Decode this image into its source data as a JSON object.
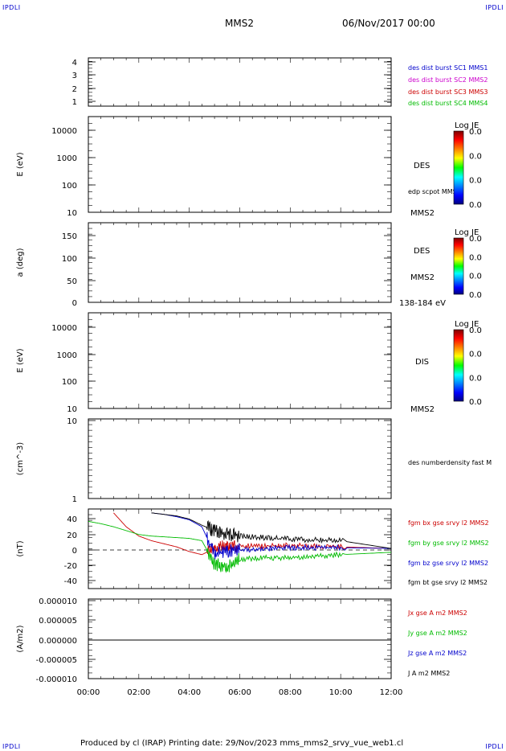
{
  "corners": {
    "tl": "IPDLI",
    "tr": "IPDLI",
    "bl": "IPDLI",
    "br": "IPDLI"
  },
  "header": {
    "title": "MMS2",
    "datetime": "06/Nov/2017 00:00"
  },
  "footer": {
    "text": "Produced by cl (IRAP)   Printing date: 29/Nov/2023   mms_mms2_srvy_vue_web1.cl"
  },
  "x_axis": {
    "ticks": [
      "00:00",
      "02:00",
      "04:00",
      "06:00",
      "08:00",
      "10:00",
      "12:00"
    ]
  },
  "panels": [
    {
      "id": "p1",
      "yticks": [
        "4",
        "3",
        "2",
        "1"
      ],
      "ylabel": "",
      "legend": [
        {
          "text": "des dist burst SC1 MMS1",
          "color": "#0000cc"
        },
        {
          "text": "des dist burst SC2 MMS2",
          "color": "#cc00cc"
        },
        {
          "text": "des dist burst SC3 MMS3",
          "color": "#cc0000"
        },
        {
          "text": "des dist burst SC4 MMS4",
          "color": "#00bb00"
        }
      ]
    },
    {
      "id": "p2",
      "yticks": [
        "10000",
        "1000",
        "100",
        "10"
      ],
      "ylabel": "E (eV)",
      "labels": [
        "DES",
        "edp scpot MMS2",
        "MMS2"
      ],
      "colorbar": {
        "title": "Log JE",
        "values": [
          "0.0",
          "0.0",
          "0.0",
          "0.0"
        ]
      }
    },
    {
      "id": "p3",
      "yticks": [
        "150",
        "100",
        "50",
        "0"
      ],
      "ylabel": "a (deg)",
      "labels": [
        "DES",
        "MMS2",
        "138-184 eV"
      ],
      "colorbar": {
        "title": "Log JE",
        "values": [
          "0.0",
          "0.0",
          "0.0",
          "0.0"
        ]
      }
    },
    {
      "id": "p4",
      "yticks": [
        "10000",
        "1000",
        "100",
        "10"
      ],
      "ylabel": "E (eV)",
      "labels": [
        "DIS",
        "MMS2"
      ],
      "colorbar": {
        "title": "Log JE",
        "values": [
          "0.0",
          "0.0",
          "0.0",
          "0.0"
        ]
      }
    },
    {
      "id": "p5",
      "yticks": [
        "10",
        "1"
      ],
      "ylabel": "(cm^-3)",
      "labels": [
        "des numberdensity fast M"
      ]
    },
    {
      "id": "p6",
      "yticks": [
        "40",
        "20",
        "0",
        "-20",
        "-40"
      ],
      "ylabel": "(nT)",
      "legend": [
        {
          "text": "fgm bx gse srvy l2 MMS2",
          "color": "#cc0000"
        },
        {
          "text": "fgm by gse srvy l2 MMS2",
          "color": "#00bb00"
        },
        {
          "text": "fgm bz gse srvy l2 MMS2",
          "color": "#0000cc"
        },
        {
          "text": "fgm bt gse srvy l2 MMS2",
          "color": "#000000"
        }
      ]
    },
    {
      "id": "p7",
      "yticks": [
        "0.000010",
        "0.000005",
        "0.000000",
        "-0.000005",
        "-0.000010"
      ],
      "ylabel": "(A/m2)",
      "legend": [
        {
          "text": "Jx gse A m2 MMS2",
          "color": "#cc0000"
        },
        {
          "text": "Jy gse A m2 MMS2",
          "color": "#00bb00"
        },
        {
          "text": "Jz gse A m2 MMS2",
          "color": "#0000cc"
        },
        {
          "text": "J A m2 MMS2",
          "color": "#000000"
        }
      ]
    }
  ],
  "chart_data": {
    "type": "line",
    "xlabel": "",
    "xlim": [
      "00:00",
      "12:00"
    ],
    "series": [
      {
        "name": "fgm bx gse srvy l2 MMS2",
        "color": "#cc0000",
        "x": [
          "01:00",
          "01:30",
          "02:00",
          "02:30",
          "03:00",
          "03:30",
          "04:00",
          "04:30",
          "05:00",
          "05:30",
          "06:00",
          "07:00",
          "08:00",
          "09:00",
          "10:00",
          "12:00"
        ],
        "values": [
          48,
          30,
          18,
          12,
          8,
          4,
          -2,
          -6,
          2,
          6,
          5,
          5,
          6,
          5,
          4,
          2
        ]
      },
      {
        "name": "fgm by gse srvy l2 MMS2",
        "color": "#00bb00",
        "x": [
          "00:00",
          "00:30",
          "01:00",
          "01:30",
          "02:00",
          "02:30",
          "03:00",
          "03:30",
          "04:00",
          "04:30",
          "05:00",
          "05:30",
          "06:00",
          "07:00",
          "08:00",
          "09:00",
          "10:00",
          "12:00"
        ],
        "values": [
          37,
          34,
          30,
          25,
          20,
          18,
          17,
          16,
          15,
          12,
          -18,
          -22,
          -12,
          -10,
          -10,
          -8,
          -6,
          -3
        ]
      },
      {
        "name": "fgm bz gse srvy l2 MMS2",
        "color": "#0000cc",
        "x": [
          "02:30",
          "03:00",
          "03:30",
          "04:00",
          "04:30",
          "05:00",
          "05:30",
          "06:00",
          "07:00",
          "08:00",
          "09:00",
          "10:00",
          "12:00"
        ],
        "values": [
          48,
          46,
          43,
          39,
          30,
          -5,
          -2,
          0,
          2,
          3,
          3,
          3,
          2
        ]
      },
      {
        "name": "fgm bt gse srvy l2 MMS2",
        "color": "#000000",
        "x": [
          "02:30",
          "03:00",
          "03:30",
          "04:00",
          "04:30",
          "05:00",
          "05:30",
          "06:00",
          "07:00",
          "08:00",
          "09:00",
          "10:00",
          "12:00"
        ],
        "values": [
          48,
          46,
          44,
          40,
          32,
          25,
          20,
          18,
          16,
          14,
          13,
          12,
          2
        ]
      },
      {
        "name": "J A m2 MMS2",
        "color": "#000000",
        "x": [
          "00:00",
          "12:00"
        ],
        "values": [
          0.0,
          0.0
        ]
      }
    ]
  }
}
